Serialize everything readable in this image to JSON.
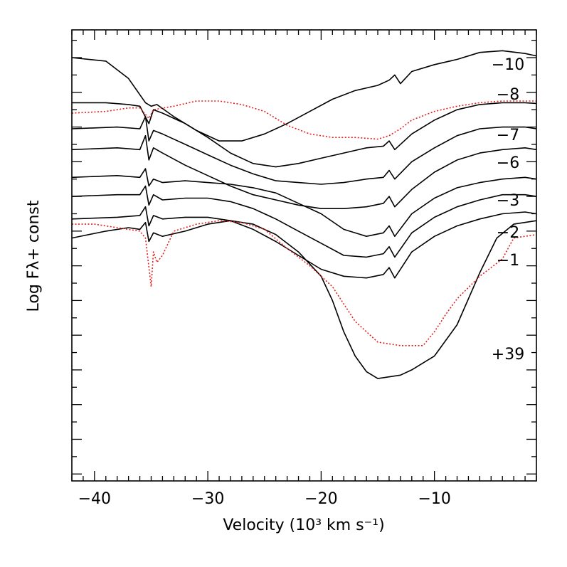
{
  "chart_data": {
    "type": "line",
    "title": "",
    "xlabel": "Velocity (10³ km s⁻¹)",
    "ylabel": "Log Fλ+ const",
    "xlim": [
      -42,
      -1
    ],
    "ylim": [
      -12.2,
      0.8
    ],
    "x_ticks": [
      -40,
      -30,
      -20,
      -10
    ],
    "x_tick_labels": [
      "−40",
      "−30",
      "−20",
      "−10"
    ],
    "y_tick_labels_shown": false,
    "series": [
      {
        "name": "-10",
        "label": "−10",
        "style": "solid",
        "offset": 0.0,
        "points": [
          [
            -42,
            0.0
          ],
          [
            -39,
            -0.1
          ],
          [
            -37,
            -0.6
          ],
          [
            -35.5,
            -1.3
          ],
          [
            -35,
            -1.4
          ],
          [
            -34.5,
            -1.35
          ],
          [
            -33,
            -1.7
          ],
          [
            -31,
            -2.1
          ],
          [
            -29,
            -2.4
          ],
          [
            -27,
            -2.4
          ],
          [
            -25,
            -2.2
          ],
          [
            -23,
            -1.9
          ],
          [
            -21,
            -1.55
          ],
          [
            -19,
            -1.2
          ],
          [
            -17,
            -0.95
          ],
          [
            -15,
            -0.8
          ],
          [
            -14,
            -0.65
          ],
          [
            -13.5,
            -0.5
          ],
          [
            -13,
            -0.75
          ],
          [
            -12,
            -0.4
          ],
          [
            -10,
            -0.2
          ],
          [
            -8,
            -0.05
          ],
          [
            -6,
            0.15
          ],
          [
            -4,
            0.2
          ],
          [
            -2,
            0.12
          ],
          [
            -1,
            0.05
          ]
        ]
      },
      {
        "name": "-8",
        "label": "−8",
        "style": "solid",
        "offset": 0.0,
        "points": [
          [
            -42,
            -1.3
          ],
          [
            -39,
            -1.3
          ],
          [
            -37,
            -1.35
          ],
          [
            -36,
            -1.4
          ],
          [
            -35.2,
            -1.9
          ],
          [
            -34.8,
            -1.5
          ],
          [
            -34,
            -1.6
          ],
          [
            -32,
            -1.9
          ],
          [
            -30,
            -2.3
          ],
          [
            -28,
            -2.75
          ],
          [
            -26,
            -3.05
          ],
          [
            -24,
            -3.15
          ],
          [
            -22,
            -3.05
          ],
          [
            -20,
            -2.9
          ],
          [
            -18,
            -2.75
          ],
          [
            -16,
            -2.6
          ],
          [
            -14.5,
            -2.55
          ],
          [
            -14,
            -2.4
          ],
          [
            -13.5,
            -2.65
          ],
          [
            -12,
            -2.2
          ],
          [
            -10,
            -1.8
          ],
          [
            -8,
            -1.5
          ],
          [
            -6,
            -1.35
          ],
          [
            -4,
            -1.3
          ],
          [
            -2,
            -1.3
          ],
          [
            -1,
            -1.32
          ]
        ]
      },
      {
        "name": "-7",
        "label": "−7",
        "style": "solid",
        "offset": 0.0,
        "points": [
          [
            -42,
            -2.05
          ],
          [
            -38,
            -2.0
          ],
          [
            -36,
            -2.05
          ],
          [
            -35.5,
            -1.7
          ],
          [
            -35.2,
            -2.4
          ],
          [
            -34.8,
            -2.1
          ],
          [
            -34,
            -2.2
          ],
          [
            -32,
            -2.5
          ],
          [
            -30,
            -2.8
          ],
          [
            -28,
            -3.1
          ],
          [
            -26,
            -3.35
          ],
          [
            -24,
            -3.55
          ],
          [
            -22,
            -3.6
          ],
          [
            -20,
            -3.65
          ],
          [
            -18,
            -3.6
          ],
          [
            -16,
            -3.5
          ],
          [
            -14.5,
            -3.45
          ],
          [
            -14,
            -3.25
          ],
          [
            -13.5,
            -3.5
          ],
          [
            -12,
            -3.0
          ],
          [
            -10,
            -2.6
          ],
          [
            -8,
            -2.25
          ],
          [
            -6,
            -2.05
          ],
          [
            -4,
            -2.0
          ],
          [
            -2,
            -2.0
          ],
          [
            -1,
            -2.05
          ]
        ]
      },
      {
        "name": "-6",
        "label": "−6",
        "style": "solid",
        "offset": 0.0,
        "points": [
          [
            -42,
            -2.65
          ],
          [
            -38,
            -2.6
          ],
          [
            -36,
            -2.65
          ],
          [
            -35.5,
            -2.25
          ],
          [
            -35.2,
            -2.95
          ],
          [
            -34.8,
            -2.6
          ],
          [
            -34,
            -2.75
          ],
          [
            -32,
            -3.1
          ],
          [
            -30,
            -3.4
          ],
          [
            -28,
            -3.7
          ],
          [
            -26,
            -3.95
          ],
          [
            -24,
            -4.1
          ],
          [
            -22,
            -4.25
          ],
          [
            -20,
            -4.35
          ],
          [
            -18,
            -4.35
          ],
          [
            -16,
            -4.3
          ],
          [
            -14.5,
            -4.2
          ],
          [
            -14,
            -4.0
          ],
          [
            -13.5,
            -4.3
          ],
          [
            -12,
            -3.8
          ],
          [
            -10,
            -3.3
          ],
          [
            -8,
            -2.95
          ],
          [
            -6,
            -2.75
          ],
          [
            -4,
            -2.65
          ],
          [
            -2,
            -2.6
          ],
          [
            -1,
            -2.65
          ]
        ]
      },
      {
        "name": "-3",
        "label": "−3",
        "style": "solid",
        "offset": 0.0,
        "points": [
          [
            -42,
            -3.45
          ],
          [
            -38,
            -3.4
          ],
          [
            -36,
            -3.45
          ],
          [
            -35.5,
            -3.2
          ],
          [
            -35.2,
            -3.7
          ],
          [
            -34.8,
            -3.5
          ],
          [
            -34,
            -3.6
          ],
          [
            -32,
            -3.55
          ],
          [
            -30,
            -3.6
          ],
          [
            -28,
            -3.65
          ],
          [
            -26,
            -3.75
          ],
          [
            -24,
            -3.9
          ],
          [
            -22,
            -4.2
          ],
          [
            -20,
            -4.5
          ],
          [
            -18,
            -4.95
          ],
          [
            -16,
            -5.15
          ],
          [
            -14.5,
            -5.05
          ],
          [
            -14,
            -4.85
          ],
          [
            -13.5,
            -5.15
          ],
          [
            -12,
            -4.5
          ],
          [
            -10,
            -4.05
          ],
          [
            -8,
            -3.75
          ],
          [
            -6,
            -3.6
          ],
          [
            -4,
            -3.5
          ],
          [
            -2,
            -3.45
          ],
          [
            -1,
            -3.5
          ]
        ]
      },
      {
        "name": "-2",
        "label": "−2",
        "style": "solid",
        "offset": 0.0,
        "points": [
          [
            -42,
            -4.0
          ],
          [
            -38,
            -3.95
          ],
          [
            -36,
            -3.95
          ],
          [
            -35.5,
            -3.7
          ],
          [
            -35.2,
            -4.25
          ],
          [
            -34.8,
            -3.95
          ],
          [
            -34,
            -4.1
          ],
          [
            -32,
            -4.05
          ],
          [
            -30,
            -4.05
          ],
          [
            -28,
            -4.15
          ],
          [
            -26,
            -4.35
          ],
          [
            -24,
            -4.65
          ],
          [
            -22,
            -5.0
          ],
          [
            -20,
            -5.35
          ],
          [
            -18,
            -5.7
          ],
          [
            -16,
            -5.75
          ],
          [
            -14.5,
            -5.65
          ],
          [
            -14,
            -5.45
          ],
          [
            -13.5,
            -5.75
          ],
          [
            -12,
            -5.05
          ],
          [
            -10,
            -4.6
          ],
          [
            -8,
            -4.3
          ],
          [
            -6,
            -4.1
          ],
          [
            -4,
            -3.95
          ],
          [
            -2,
            -3.95
          ],
          [
            -1,
            -4.0
          ]
        ]
      },
      {
        "name": "-1",
        "label": "−1",
        "style": "solid",
        "offset": 0.0,
        "points": [
          [
            -42,
            -4.65
          ],
          [
            -38,
            -4.6
          ],
          [
            -36,
            -4.55
          ],
          [
            -35.5,
            -4.3
          ],
          [
            -35.2,
            -4.85
          ],
          [
            -34.8,
            -4.55
          ],
          [
            -34,
            -4.65
          ],
          [
            -32,
            -4.6
          ],
          [
            -30,
            -4.6
          ],
          [
            -28,
            -4.7
          ],
          [
            -26,
            -4.95
          ],
          [
            -24,
            -5.3
          ],
          [
            -22,
            -5.7
          ],
          [
            -20,
            -6.1
          ],
          [
            -18,
            -6.3
          ],
          [
            -16,
            -6.35
          ],
          [
            -14.5,
            -6.25
          ],
          [
            -14,
            -6.05
          ],
          [
            -13.5,
            -6.35
          ],
          [
            -12,
            -5.6
          ],
          [
            -10,
            -5.15
          ],
          [
            -8,
            -4.85
          ],
          [
            -6,
            -4.65
          ],
          [
            -4,
            -4.5
          ],
          [
            -2,
            -4.45
          ],
          [
            -1,
            -4.5
          ]
        ]
      },
      {
        "name": "+39",
        "label": "+39",
        "style": "solid",
        "offset": 0.0,
        "points": [
          [
            -42,
            -5.2
          ],
          [
            -39,
            -5.0
          ],
          [
            -37,
            -4.9
          ],
          [
            -36,
            -4.95
          ],
          [
            -35.5,
            -4.75
          ],
          [
            -35.2,
            -5.3
          ],
          [
            -34.8,
            -5.05
          ],
          [
            -34,
            -5.15
          ],
          [
            -32,
            -5.0
          ],
          [
            -30,
            -4.8
          ],
          [
            -28,
            -4.7
          ],
          [
            -26,
            -4.8
          ],
          [
            -24,
            -5.1
          ],
          [
            -22,
            -5.6
          ],
          [
            -20,
            -6.3
          ],
          [
            -19,
            -7.0
          ],
          [
            -18,
            -7.9
          ],
          [
            -17,
            -8.6
          ],
          [
            -16,
            -9.05
          ],
          [
            -15,
            -9.25
          ],
          [
            -14,
            -9.2
          ],
          [
            -13,
            -9.15
          ],
          [
            -12,
            -9.0
          ],
          [
            -10,
            -8.6
          ],
          [
            -8,
            -7.7
          ],
          [
            -6,
            -6.2
          ],
          [
            -4.5,
            -5.2
          ],
          [
            -3,
            -4.8
          ],
          [
            -1,
            -4.7
          ]
        ]
      },
      {
        "name": "-8 (dotted)",
        "label": "",
        "style": "dotted",
        "offset": 0.0,
        "points": [
          [
            -42,
            -1.6
          ],
          [
            -39,
            -1.55
          ],
          [
            -37,
            -1.45
          ],
          [
            -36,
            -1.45
          ],
          [
            -35.2,
            -1.75
          ],
          [
            -34.8,
            -1.5
          ],
          [
            -33,
            -1.4
          ],
          [
            -31,
            -1.25
          ],
          [
            -29,
            -1.25
          ],
          [
            -27,
            -1.35
          ],
          [
            -25,
            -1.55
          ],
          [
            -23,
            -1.95
          ],
          [
            -21,
            -2.2
          ],
          [
            -19,
            -2.3
          ],
          [
            -17,
            -2.3
          ],
          [
            -15,
            -2.35
          ],
          [
            -14,
            -2.25
          ],
          [
            -13,
            -2.05
          ],
          [
            -12,
            -1.8
          ],
          [
            -10,
            -1.55
          ],
          [
            -8,
            -1.4
          ],
          [
            -6,
            -1.3
          ],
          [
            -4,
            -1.25
          ],
          [
            -2,
            -1.25
          ],
          [
            -1,
            -1.25
          ]
        ]
      },
      {
        "name": "+39 (dotted)",
        "label": "",
        "style": "dotted",
        "offset": 0.0,
        "points": [
          [
            -42,
            -4.8
          ],
          [
            -40,
            -4.8
          ],
          [
            -38,
            -4.9
          ],
          [
            -36,
            -5.0
          ],
          [
            -35.5,
            -5.2
          ],
          [
            -35,
            -6.6
          ],
          [
            -34.8,
            -5.6
          ],
          [
            -34.5,
            -5.9
          ],
          [
            -34,
            -5.7
          ],
          [
            -33,
            -5.0
          ],
          [
            -31,
            -4.8
          ],
          [
            -29,
            -4.7
          ],
          [
            -27,
            -4.75
          ],
          [
            -25,
            -4.95
          ],
          [
            -23,
            -5.5
          ],
          [
            -21,
            -6.0
          ],
          [
            -19,
            -6.6
          ],
          [
            -18,
            -7.1
          ],
          [
            -17,
            -7.6
          ],
          [
            -16,
            -7.9
          ],
          [
            -15,
            -8.2
          ],
          [
            -13,
            -8.3
          ],
          [
            -11,
            -8.3
          ],
          [
            -10,
            -7.9
          ],
          [
            -9,
            -7.4
          ],
          [
            -8,
            -6.95
          ],
          [
            -6,
            -6.3
          ],
          [
            -4,
            -5.8
          ],
          [
            -3,
            -5.2
          ],
          [
            -1,
            -5.1
          ]
        ]
      }
    ]
  }
}
